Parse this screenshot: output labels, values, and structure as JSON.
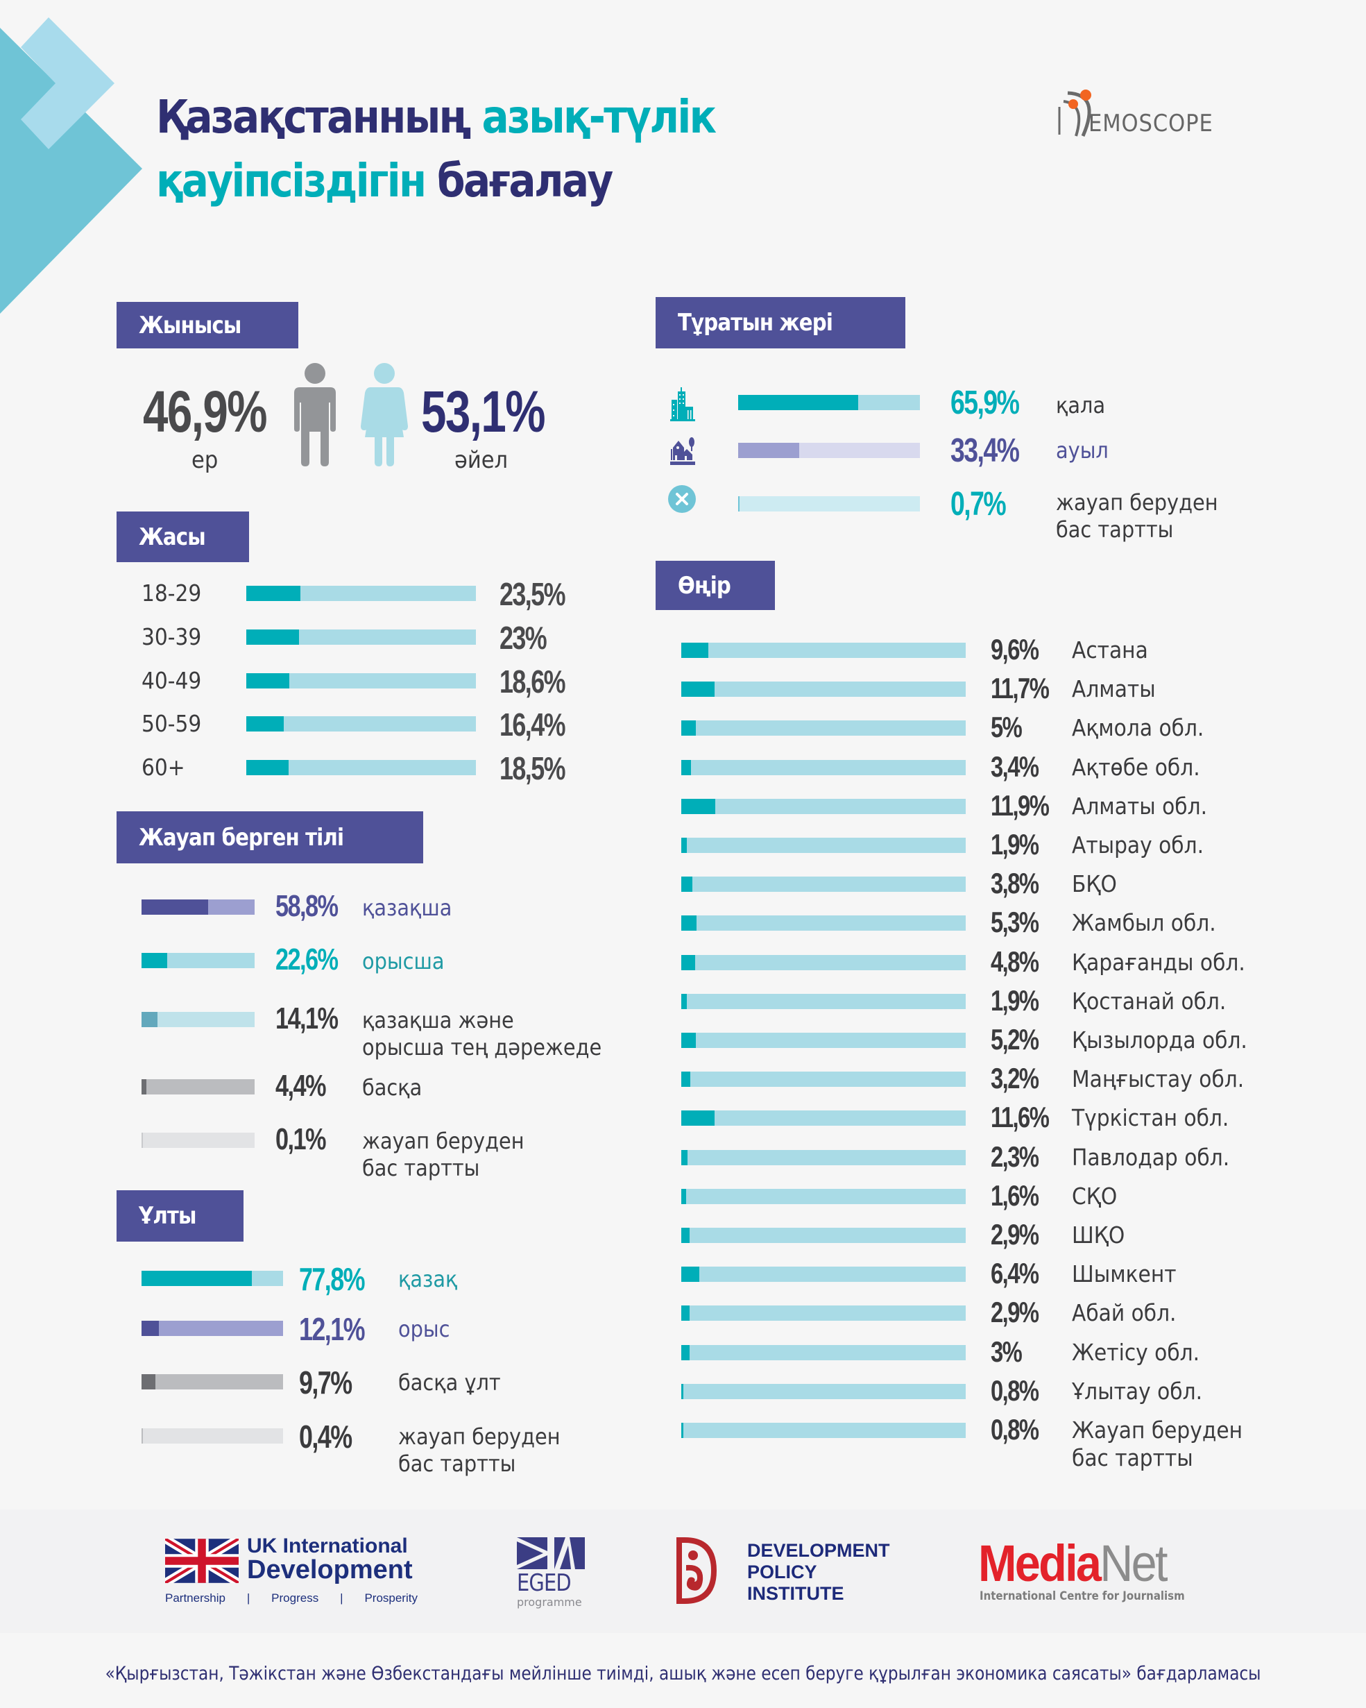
{
  "title": {
    "line1_part1": "Қазақстанның",
    "line1_part2": "азық-түлік",
    "line2_part1": "қауіпсіздігін",
    "line2_part2": "бағалау"
  },
  "logo": {
    "text": "EMOSCOPE",
    "full_name": "DEMOSCOPE"
  },
  "colors": {
    "navy": "#2f2f72",
    "header_bg": "#4f5198",
    "teal": "#00aeb8",
    "teal_light": "#a9dbe6",
    "purple": "#4f5198",
    "purple_light": "#9c9fd0",
    "gray_dark": "#6d6e72",
    "gray_light": "#bbbcbf",
    "gray_pale": "#e2e3e5",
    "male_icon": "#939598",
    "female_icon": "#a9dbe6"
  },
  "gender": {
    "header": "Жынысы",
    "male": {
      "value": "46,9%",
      "label": "ер",
      "icon": "male-icon"
    },
    "female": {
      "value": "53,1%",
      "label": "әйел",
      "icon": "female-icon"
    }
  },
  "residence": {
    "header": "Тұратын жері",
    "items": [
      {
        "icon": "city-icon",
        "value": "65,9%",
        "label": "қала",
        "pct": 65.9
      },
      {
        "icon": "village-icon",
        "value": "33,4%",
        "label": "ауыл",
        "pct": 33.4
      },
      {
        "icon": "close-circle-icon",
        "value": "0,7%",
        "label": "жауап беруден бас тартты",
        "label_line1": "жауап беруден",
        "label_line2": "бас тартты",
        "pct": 0.7
      }
    ]
  },
  "age": {
    "header": "Жасы",
    "items": [
      {
        "label": "18-29",
        "value": "23,5%",
        "pct": 23.5
      },
      {
        "label": "30-39",
        "value": "23%",
        "pct": 23
      },
      {
        "label": "40-49",
        "value": "18,6%",
        "pct": 18.6
      },
      {
        "label": "50-59",
        "value": "16,4%",
        "pct": 16.4
      },
      {
        "label": "60+",
        "value": "18,5%",
        "pct": 18.5
      }
    ]
  },
  "language": {
    "header": "Жауап берген тілі",
    "items": [
      {
        "value": "58,8%",
        "label_line1": "қазақша",
        "label_line2": "",
        "pct": 58.8
      },
      {
        "value": "22,6%",
        "label_line1": "орысша",
        "label_line2": "",
        "pct": 22.6
      },
      {
        "value": "14,1%",
        "label_line1": "қазақша және",
        "label_line2": "орысша тең дәрежеде",
        "pct": 14.1
      },
      {
        "value": "4,4%",
        "label_line1": "басқа",
        "label_line2": "",
        "pct": 4.4
      },
      {
        "value": "0,1%",
        "label_line1": "жауап беруден",
        "label_line2": "бас тартты",
        "pct": 0.1
      }
    ]
  },
  "nationality": {
    "header": "Ұлты",
    "items": [
      {
        "value": "77,8%",
        "label_line1": "қазақ",
        "label_line2": "",
        "pct": 77.8
      },
      {
        "value": "12,1%",
        "label_line1": "орыс",
        "label_line2": "",
        "pct": 12.1
      },
      {
        "value": "9,7%",
        "label_line1": "басқа ұлт",
        "label_line2": "",
        "pct": 9.7
      },
      {
        "value": "0,4%",
        "label_line1": "жауап беруден",
        "label_line2": "бас тартты",
        "pct": 0.4
      }
    ]
  },
  "region": {
    "header": "Өңір",
    "items": [
      {
        "value": "9,6%",
        "label_line1": "Астана",
        "label_line2": "",
        "pct": 9.6
      },
      {
        "value": "11,7%",
        "label_line1": "Алматы",
        "label_line2": "",
        "pct": 11.7
      },
      {
        "value": "5%",
        "label_line1": "Ақмола обл.",
        "label_line2": "",
        "pct": 5
      },
      {
        "value": "3,4%",
        "label_line1": "Ақтөбе обл.",
        "label_line2": "",
        "pct": 3.4
      },
      {
        "value": "11,9%",
        "label_line1": "Алматы обл.",
        "label_line2": "",
        "pct": 11.9
      },
      {
        "value": "1,9%",
        "label_line1": "Атырау обл.",
        "label_line2": "",
        "pct": 1.9
      },
      {
        "value": "3,8%",
        "label_line1": "БҚО",
        "label_line2": "",
        "pct": 3.8
      },
      {
        "value": "5,3%",
        "label_line1": "Жамбыл обл.",
        "label_line2": "",
        "pct": 5.3
      },
      {
        "value": "4,8%",
        "label_line1": "Қарағанды обл.",
        "label_line2": "",
        "pct": 4.8
      },
      {
        "value": "1,9%",
        "label_line1": "Қостанай обл.",
        "label_line2": "",
        "pct": 1.9
      },
      {
        "value": "5,2%",
        "label_line1": "Қызылорда обл.",
        "label_line2": "",
        "pct": 5.2
      },
      {
        "value": "3,2%",
        "label_line1": "Маңғыстау обл.",
        "label_line2": "",
        "pct": 3.2
      },
      {
        "value": "11,6%",
        "label_line1": "Түркістан обл.",
        "label_line2": "",
        "pct": 11.6
      },
      {
        "value": "2,3%",
        "label_line1": "Павлодар обл.",
        "label_line2": "",
        "pct": 2.3
      },
      {
        "value": "1,6%",
        "label_line1": "СҚО",
        "label_line2": "",
        "pct": 1.6
      },
      {
        "value": "2,9%",
        "label_line1": "ШҚО",
        "label_line2": "",
        "pct": 2.9
      },
      {
        "value": "6,4%",
        "label_line1": "Шымкент",
        "label_line2": "",
        "pct": 6.4
      },
      {
        "value": "2,9%",
        "label_line1": "Абай обл.",
        "label_line2": "",
        "pct": 2.9
      },
      {
        "value": "3%",
        "label_line1": "Жетісу обл.",
        "label_line2": "",
        "pct": 3
      },
      {
        "value": "0,8%",
        "label_line1": "Ұлытау обл.",
        "label_line2": "",
        "pct": 0.8
      },
      {
        "value": "0,8%",
        "label_line1": "Жауап беруден",
        "label_line2": "бас тартты",
        "pct": 0.8
      }
    ]
  },
  "chart_data": [
    {
      "type": "bar",
      "title": "Жынысы",
      "categories": [
        "ер",
        "әйел"
      ],
      "values": [
        46.9,
        53.1
      ],
      "unit": "%"
    },
    {
      "type": "bar",
      "title": "Тұратын жері",
      "categories": [
        "қала",
        "ауыл",
        "жауап беруден бас тартты"
      ],
      "values": [
        65.9,
        33.4,
        0.7
      ],
      "unit": "%",
      "xlim": [
        0,
        100
      ]
    },
    {
      "type": "bar",
      "title": "Жасы",
      "categories": [
        "18-29",
        "30-39",
        "40-49",
        "50-59",
        "60+"
      ],
      "values": [
        23.5,
        23,
        18.6,
        16.4,
        18.5
      ],
      "unit": "%",
      "xlim": [
        0,
        100
      ]
    },
    {
      "type": "bar",
      "title": "Жауап берген тілі",
      "categories": [
        "қазақша",
        "орысша",
        "қазақша және орысша тең дәрежеде",
        "басқа",
        "жауап беруден бас тартты"
      ],
      "values": [
        58.8,
        22.6,
        14.1,
        4.4,
        0.1
      ],
      "unit": "%",
      "xlim": [
        0,
        100
      ]
    },
    {
      "type": "bar",
      "title": "Ұлты",
      "categories": [
        "қазақ",
        "орыс",
        "басқа ұлт",
        "жауап беруден бас тартты"
      ],
      "values": [
        77.8,
        12.1,
        9.7,
        0.4
      ],
      "unit": "%",
      "xlim": [
        0,
        100
      ]
    },
    {
      "type": "bar",
      "title": "Өңір",
      "categories": [
        "Астана",
        "Алматы",
        "Ақмола обл.",
        "Ақтөбе обл.",
        "Алматы обл.",
        "Атырау обл.",
        "БҚО",
        "Жамбыл обл.",
        "Қарағанды обл.",
        "Қостанай обл.",
        "Қызылорда обл.",
        "Маңғыстау обл.",
        "Түркістан обл.",
        "Павлодар обл.",
        "СҚО",
        "ШҚО",
        "Шымкент",
        "Абай обл.",
        "Жетісу обл.",
        "Ұлытау обл.",
        "Жауап беруден бас тартты"
      ],
      "values": [
        9.6,
        11.7,
        5,
        3.4,
        11.9,
        1.9,
        3.8,
        5.3,
        4.8,
        1.9,
        5.2,
        3.2,
        11.6,
        2.3,
        1.6,
        2.9,
        6.4,
        2.9,
        3,
        0.8,
        0.8
      ],
      "unit": "%",
      "xlim": [
        0,
        100
      ]
    }
  ],
  "partners": {
    "uk": {
      "line1": "UK International",
      "line2": "Development",
      "tag1": "Partnership",
      "tag2": "Progress",
      "tag3": "Prosperity",
      "sep": "|"
    },
    "eged": {
      "name": "EGED",
      "sub": "programme"
    },
    "dpi": {
      "line1": "DEVELOPMENT",
      "line2": "POLICY",
      "line3": "INSTITUTE"
    },
    "medianet": {
      "part1": "Media",
      "part2": "Net",
      "sub": "International Centre for Journalism"
    }
  },
  "footer_note": "«Қырғызстан, Тәжікстан және Өзбекстандағы мейлінше тиімді, ашық және есеп беруге құрылған экономика саясаты» бағдарламасы"
}
